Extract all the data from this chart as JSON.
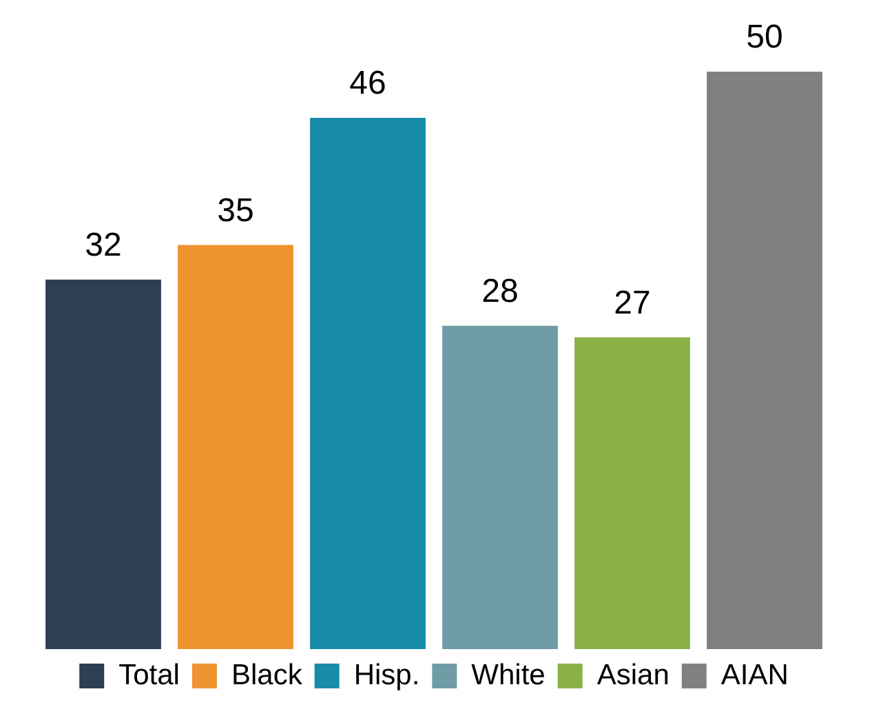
{
  "chart_data": {
    "type": "bar",
    "categories": [
      null
    ],
    "series": [
      {
        "name": "Total",
        "color": "#2e3e55",
        "values": [
          32
        ]
      },
      {
        "name": "Black",
        "color": "#ee9430",
        "values": [
          35
        ]
      },
      {
        "name": "Hisp.",
        "color": "#168caa",
        "values": [
          46
        ]
      },
      {
        "name": "White",
        "color": "#6f9ca5",
        "values": [
          28
        ]
      },
      {
        "name": "Asian",
        "color": "#8ab148",
        "values": [
          27
        ]
      },
      {
        "name": "AIAN",
        "color": "#808080",
        "values": [
          50
        ]
      }
    ],
    "data_labels": true,
    "legend": "bottom"
  }
}
